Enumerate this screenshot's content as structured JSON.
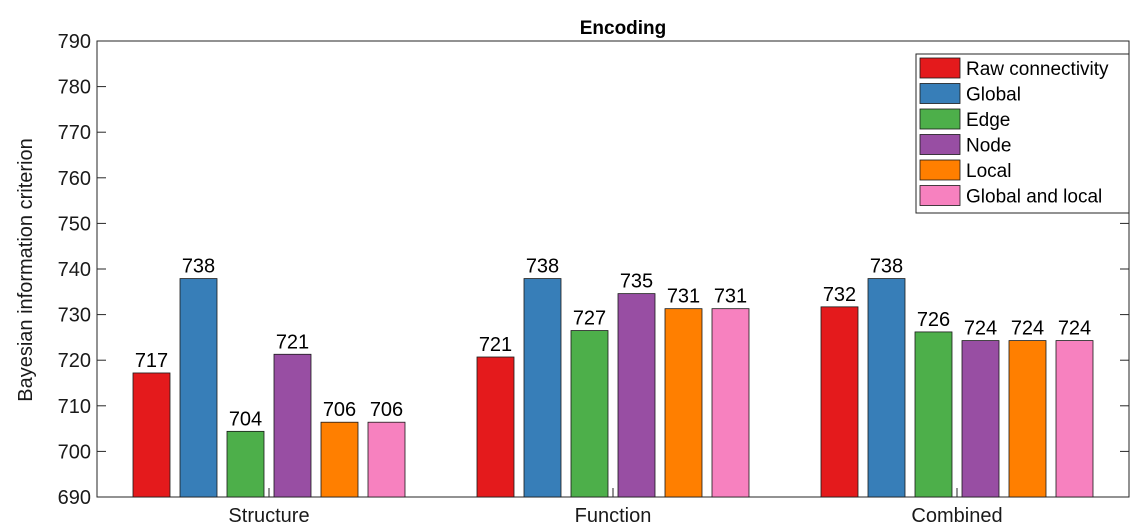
{
  "chart_data": {
    "type": "bar",
    "title": "Encoding",
    "xlabel": "",
    "ylabel": "Bayesian information criterion",
    "ylim": [
      690,
      790
    ],
    "yticks": [
      690,
      700,
      710,
      720,
      730,
      740,
      750,
      760,
      770,
      780,
      790
    ],
    "categories": [
      "Structure",
      "Function",
      "Combined"
    ],
    "grid": false,
    "legend_position": "top-right",
    "series": [
      {
        "name": "Raw connectivity",
        "color": "#e41a1c",
        "values": [
          717.2,
          720.7,
          731.7
        ],
        "labels": [
          "717",
          "721",
          "732"
        ]
      },
      {
        "name": "Global",
        "color": "#377eb8",
        "values": [
          737.9,
          737.9,
          737.9
        ],
        "labels": [
          "738",
          "738",
          "738"
        ]
      },
      {
        "name": "Edge",
        "color": "#4daf4a",
        "values": [
          704.4,
          726.5,
          726.2
        ],
        "labels": [
          "704",
          "727",
          "726"
        ]
      },
      {
        "name": "Node",
        "color": "#984ea3",
        "values": [
          721.3,
          734.6,
          724.3
        ],
        "labels": [
          "721",
          "735",
          "724"
        ]
      },
      {
        "name": "Local",
        "color": "#ff7f00",
        "values": [
          706.4,
          731.3,
          724.3
        ],
        "labels": [
          "706",
          "731",
          "724"
        ]
      },
      {
        "name": "Global and local",
        "color": "#f781bf",
        "values": [
          706.4,
          731.3,
          724.3
        ],
        "labels": [
          "706",
          "731",
          "724"
        ]
      }
    ]
  }
}
